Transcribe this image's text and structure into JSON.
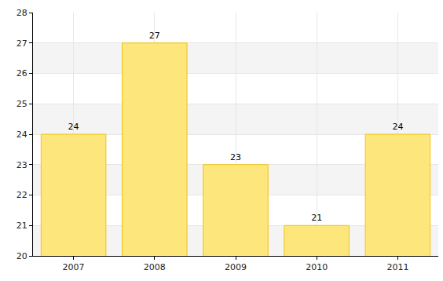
{
  "chart_data": {
    "type": "bar",
    "categories": [
      "2007",
      "2008",
      "2009",
      "2010",
      "2011"
    ],
    "values": [
      24,
      27,
      23,
      21,
      24
    ],
    "color": "#fde77d",
    "ylim": [
      20,
      28
    ],
    "yticks": [
      20,
      21,
      22,
      23,
      24,
      25,
      26,
      27,
      28
    ],
    "grid": true,
    "data_labels": true
  }
}
